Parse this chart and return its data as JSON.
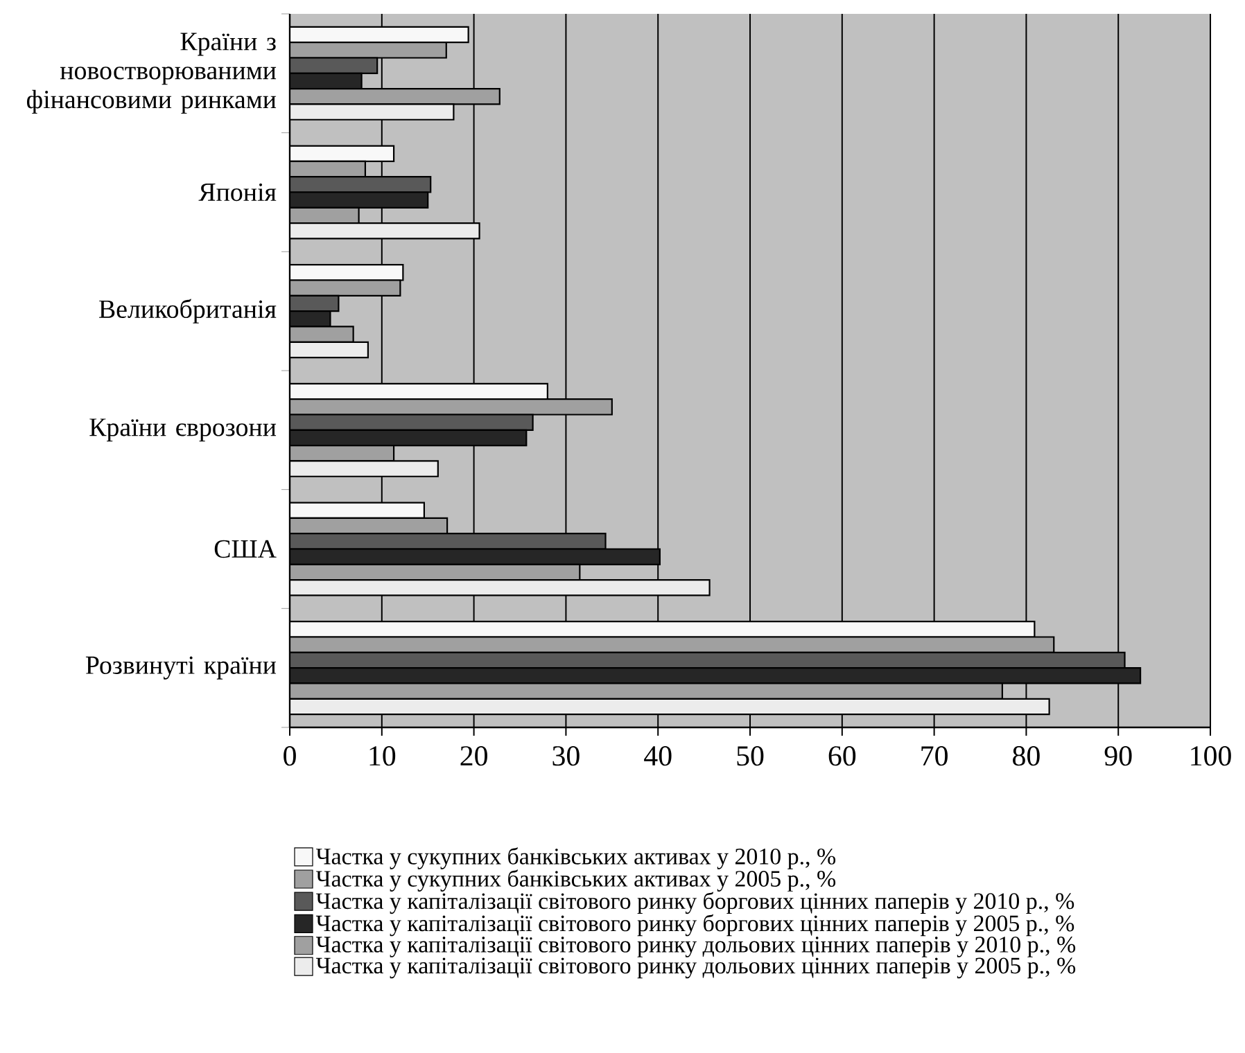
{
  "chart_data": {
    "type": "bar",
    "orientation": "horizontal",
    "categories": [
      "Країни з новостворюваними фінансовими ринками",
      "Японія",
      "Великобританія",
      "Країни єврозони",
      "США",
      "Розвинуті країни"
    ],
    "series": [
      {
        "name": "Частка у сукупних банківських активах у 2010 р., %",
        "color": "#f8f8f8",
        "values": [
          19.4,
          11.3,
          12.3,
          28.0,
          14.6,
          80.9
        ]
      },
      {
        "name": "Частка у сукупних банківських активах у 2005 р., %",
        "color": "#a0a0a0",
        "values": [
          17.0,
          8.2,
          12.0,
          35.0,
          17.1,
          83.0
        ]
      },
      {
        "name": "Частка у капіталізації світового ринку боргових цінних паперів у 2010 р., %",
        "color": "#595959",
        "values": [
          9.5,
          15.3,
          5.3,
          26.4,
          34.3,
          90.7
        ]
      },
      {
        "name": "Частка у капіталізації світового ринку боргових цінних паперів у 2005 р., %",
        "color": "#262626",
        "values": [
          7.8,
          15.0,
          4.4,
          25.7,
          40.2,
          92.4
        ]
      },
      {
        "name": "Частка у капіталізації світового ринку дольових цінних паперів у 2010 р., %",
        "color": "#a0a0a0",
        "values": [
          22.8,
          7.5,
          6.9,
          11.3,
          31.5,
          77.4
        ]
      },
      {
        "name": "Частка у капіталізації світового ринку дольових цінних паперів у 2005 р., %",
        "color": "#ececec",
        "values": [
          17.8,
          20.6,
          8.5,
          16.1,
          45.6,
          82.5
        ]
      }
    ],
    "xlim": [
      0,
      100
    ],
    "xticks": [
      0,
      10,
      20,
      30,
      40,
      50,
      60,
      70,
      80,
      90,
      100
    ],
    "grid": "x",
    "legend": "bottom"
  }
}
